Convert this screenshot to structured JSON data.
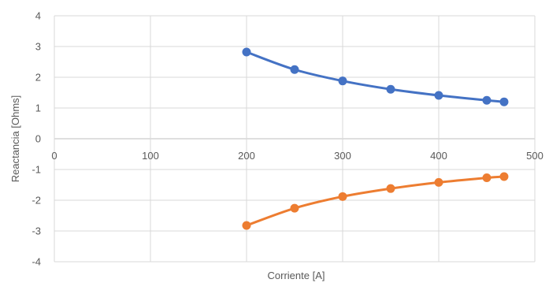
{
  "chart_data": {
    "type": "line",
    "xlabel": "Corriente [A]",
    "ylabel": "Reactancia [Ohms]",
    "xlim": [
      0,
      500
    ],
    "ylim": [
      -4,
      4
    ],
    "x_ticks": [
      0,
      100,
      200,
      300,
      400,
      500
    ],
    "y_ticks": [
      -4,
      -3,
      -2,
      -1,
      0,
      1,
      2,
      3,
      4
    ],
    "grid": true,
    "legend": "none",
    "series": [
      {
        "color": "#4472C4",
        "marker": "circle",
        "smooth": true,
        "x": [
          200,
          250,
          300,
          350,
          400,
          450,
          468
        ],
        "y": [
          2.82,
          2.25,
          1.88,
          1.61,
          1.41,
          1.25,
          1.2
        ]
      },
      {
        "color": "#ED7D31",
        "marker": "circle",
        "smooth": true,
        "x": [
          200,
          250,
          300,
          350,
          400,
          450,
          468
        ],
        "y": [
          -2.82,
          -2.26,
          -1.88,
          -1.62,
          -1.42,
          -1.27,
          -1.23
        ]
      }
    ]
  },
  "colors": {
    "grid": "#d9d9d9",
    "axis_text": "#595959"
  }
}
